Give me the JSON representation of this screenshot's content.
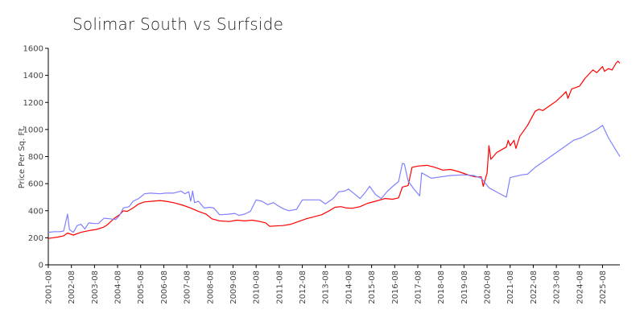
{
  "chart_data": {
    "type": "line",
    "title": "Solimar South vs Surfside",
    "ylabel": "Price Per Sq. Ft.",
    "xlabel": "",
    "ylim": [
      0,
      1600
    ],
    "yticks": [
      "0",
      "200",
      "400",
      "600",
      "800",
      "1000",
      "1200",
      "1400",
      "1600"
    ],
    "xlim": [
      "2001-08",
      "2025-11"
    ],
    "xticks": [
      "2001-08",
      "2002-08",
      "2003-08",
      "2004-08",
      "2005-08",
      "2006-08",
      "2007-08",
      "2008-08",
      "2009-08",
      "2010-08",
      "2011-08",
      "2012-08",
      "2013-08",
      "2014-08",
      "2015-08",
      "2016-08",
      "2017-08",
      "2018-08",
      "2019-08",
      "2020-08",
      "2021-08",
      "2022-08",
      "2023-08",
      "2024-08",
      "2025-08"
    ],
    "grid": false,
    "legend": "none",
    "series": [
      {
        "color": "#ff0000",
        "points": [
          [
            "2001-08",
            195
          ],
          [
            "2002-01",
            205
          ],
          [
            "2002-04",
            215
          ],
          [
            "2002-06",
            235
          ],
          [
            "2002-09",
            220
          ],
          [
            "2003-01",
            240
          ],
          [
            "2003-06",
            255
          ],
          [
            "2003-09",
            262
          ],
          [
            "2004-01",
            280
          ],
          [
            "2004-03",
            300
          ],
          [
            "2004-06",
            340
          ],
          [
            "2004-09",
            370
          ],
          [
            "2004-11",
            400
          ],
          [
            "2005-01",
            395
          ],
          [
            "2005-04",
            420
          ],
          [
            "2005-07",
            450
          ],
          [
            "2005-10",
            465
          ],
          [
            "2006-02",
            470
          ],
          [
            "2006-06",
            475
          ],
          [
            "2006-09",
            470
          ],
          [
            "2007-01",
            460
          ],
          [
            "2007-06",
            440
          ],
          [
            "2007-10",
            420
          ],
          [
            "2008-02",
            395
          ],
          [
            "2008-06",
            375
          ],
          [
            "2008-09",
            340
          ],
          [
            "2009-01",
            325
          ],
          [
            "2009-06",
            320
          ],
          [
            "2009-10",
            330
          ],
          [
            "2010-02",
            325
          ],
          [
            "2010-06",
            330
          ],
          [
            "2010-10",
            320
          ],
          [
            "2011-01",
            310
          ],
          [
            "2011-03",
            285
          ],
          [
            "2011-06",
            287
          ],
          [
            "2011-10",
            290
          ],
          [
            "2012-02",
            300
          ],
          [
            "2012-06",
            320
          ],
          [
            "2012-10",
            340
          ],
          [
            "2013-02",
            355
          ],
          [
            "2013-06",
            370
          ],
          [
            "2013-10",
            400
          ],
          [
            "2014-01",
            425
          ],
          [
            "2014-04",
            430
          ],
          [
            "2014-07",
            420
          ],
          [
            "2014-10",
            418
          ],
          [
            "2015-02",
            430
          ],
          [
            "2015-06",
            455
          ],
          [
            "2015-10",
            470
          ],
          [
            "2016-03",
            490
          ],
          [
            "2016-07",
            485
          ],
          [
            "2016-10",
            495
          ],
          [
            "2016-12",
            575
          ],
          [
            "2017-03",
            585
          ],
          [
            "2017-05",
            720
          ],
          [
            "2017-08",
            730
          ],
          [
            "2018-01",
            735
          ],
          [
            "2018-05",
            720
          ],
          [
            "2018-09",
            700
          ],
          [
            "2019-01",
            705
          ],
          [
            "2019-05",
            690
          ],
          [
            "2019-08",
            675
          ],
          [
            "2019-11",
            660
          ],
          [
            "2020-02",
            650
          ],
          [
            "2020-05",
            650
          ],
          [
            "2020-06",
            580
          ],
          [
            "2020-08",
            680
          ],
          [
            "2020-09",
            880
          ],
          [
            "2020-10",
            780
          ],
          [
            "2021-01",
            830
          ],
          [
            "2021-04",
            855
          ],
          [
            "2021-06",
            870
          ],
          [
            "2021-07",
            920
          ],
          [
            "2021-08",
            880
          ],
          [
            "2021-10",
            920
          ],
          [
            "2021-11",
            860
          ],
          [
            "2022-01",
            950
          ],
          [
            "2022-05",
            1030
          ],
          [
            "2022-09",
            1135
          ],
          [
            "2022-11",
            1150
          ],
          [
            "2023-01",
            1140
          ],
          [
            "2023-04",
            1170
          ],
          [
            "2023-08",
            1210
          ],
          [
            "2023-11",
            1250
          ],
          [
            "2024-01",
            1280
          ],
          [
            "2024-02",
            1230
          ],
          [
            "2024-04",
            1300
          ],
          [
            "2024-06",
            1310
          ],
          [
            "2024-08",
            1320
          ],
          [
            "2024-11",
            1380
          ],
          [
            "2025-01",
            1410
          ],
          [
            "2025-03",
            1440
          ],
          [
            "2025-05",
            1420
          ],
          [
            "2025-07",
            1450
          ],
          [
            "2025-08",
            1465
          ],
          [
            "2025-09",
            1430
          ],
          [
            "2025-11",
            1450
          ],
          [
            "2026-01",
            1440
          ],
          [
            "2026-03",
            1490
          ],
          [
            "2026-04",
            1505
          ],
          [
            "2026-05",
            1490
          ]
        ]
      },
      {
        "color": "#8080ff",
        "points": [
          [
            "2001-08",
            240
          ],
          [
            "2001-11",
            245
          ],
          [
            "2002-02",
            245
          ],
          [
            "2002-04",
            250
          ],
          [
            "2002-06",
            375
          ],
          [
            "2002-07",
            260
          ],
          [
            "2002-09",
            240
          ],
          [
            "2002-11",
            290
          ],
          [
            "2003-01",
            300
          ],
          [
            "2003-03",
            265
          ],
          [
            "2003-05",
            310
          ],
          [
            "2003-08",
            305
          ],
          [
            "2003-10",
            305
          ],
          [
            "2004-01",
            345
          ],
          [
            "2004-04",
            340
          ],
          [
            "2004-07",
            335
          ],
          [
            "2004-09",
            365
          ],
          [
            "2004-11",
            420
          ],
          [
            "2005-02",
            430
          ],
          [
            "2005-04",
            470
          ],
          [
            "2005-07",
            490
          ],
          [
            "2005-10",
            525
          ],
          [
            "2006-01",
            530
          ],
          [
            "2006-06",
            525
          ],
          [
            "2006-09",
            530
          ],
          [
            "2007-01",
            530
          ],
          [
            "2007-05",
            545
          ],
          [
            "2007-07",
            525
          ],
          [
            "2007-09",
            540
          ],
          [
            "2007-10",
            470
          ],
          [
            "2007-11",
            545
          ],
          [
            "2007-12",
            460
          ],
          [
            "2008-02",
            470
          ],
          [
            "2008-05",
            420
          ],
          [
            "2008-08",
            425
          ],
          [
            "2008-10",
            420
          ],
          [
            "2009-01",
            370
          ],
          [
            "2009-06",
            375
          ],
          [
            "2009-09",
            380
          ],
          [
            "2009-11",
            365
          ],
          [
            "2010-02",
            375
          ],
          [
            "2010-05",
            395
          ],
          [
            "2010-08",
            480
          ],
          [
            "2010-11",
            470
          ],
          [
            "2011-02",
            445
          ],
          [
            "2011-05",
            460
          ],
          [
            "2011-07",
            440
          ],
          [
            "2011-10",
            415
          ],
          [
            "2012-01",
            400
          ],
          [
            "2012-05",
            410
          ],
          [
            "2012-08",
            480
          ],
          [
            "2013-01",
            480
          ],
          [
            "2013-05",
            480
          ],
          [
            "2013-08",
            450
          ],
          [
            "2013-12",
            490
          ],
          [
            "2014-03",
            540
          ],
          [
            "2014-06",
            545
          ],
          [
            "2014-08",
            560
          ],
          [
            "2014-11",
            525
          ],
          [
            "2015-02",
            490
          ],
          [
            "2015-05",
            540
          ],
          [
            "2015-07",
            580
          ],
          [
            "2015-10",
            520
          ],
          [
            "2016-01",
            490
          ],
          [
            "2016-04",
            540
          ],
          [
            "2016-07",
            580
          ],
          [
            "2016-10",
            615
          ],
          [
            "2016-12",
            750
          ],
          [
            "2017-01",
            745
          ],
          [
            "2017-03",
            620
          ],
          [
            "2017-06",
            560
          ],
          [
            "2017-09",
            510
          ],
          [
            "2017-10",
            680
          ],
          [
            "2018-03",
            640
          ],
          [
            "2018-08",
            650
          ],
          [
            "2019-01",
            660
          ],
          [
            "2019-08",
            665
          ],
          [
            "2020-01",
            660
          ],
          [
            "2020-05",
            640
          ],
          [
            "2020-09",
            570
          ],
          [
            "2021-02",
            530
          ],
          [
            "2021-06",
            500
          ],
          [
            "2021-08",
            645
          ],
          [
            "2021-11",
            655
          ],
          [
            "2022-02",
            665
          ],
          [
            "2022-05",
            670
          ],
          [
            "2022-09",
            720
          ],
          [
            "2023-01",
            760
          ],
          [
            "2023-05",
            800
          ],
          [
            "2023-09",
            840
          ],
          [
            "2024-01",
            880
          ],
          [
            "2024-05",
            920
          ],
          [
            "2024-09",
            940
          ],
          [
            "2025-01",
            970
          ],
          [
            "2025-05",
            1000
          ],
          [
            "2025-08",
            1030
          ],
          [
            "2025-11",
            940
          ],
          [
            "2026-05",
            800
          ]
        ]
      }
    ]
  }
}
